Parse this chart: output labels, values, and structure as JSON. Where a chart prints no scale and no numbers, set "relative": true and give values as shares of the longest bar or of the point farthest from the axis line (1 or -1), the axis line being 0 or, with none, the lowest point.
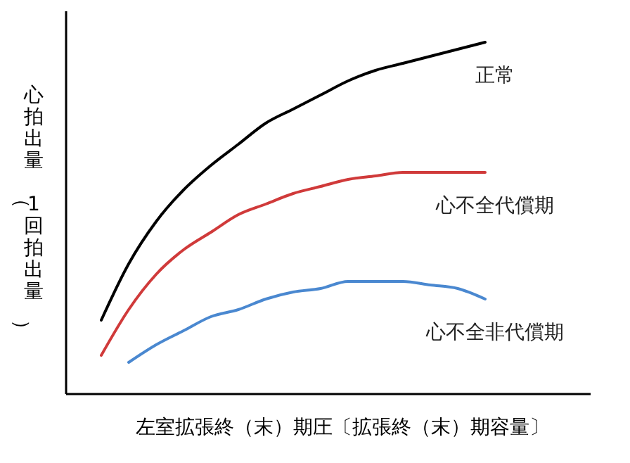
{
  "chart_data": {
    "type": "line",
    "relative": true,
    "xlabel": "左室拡張終（末）期圧〔拡張終（末）期容量〕",
    "ylabel": "心拍出量（1回拍出量）",
    "categories": [
      null,
      null,
      null,
      null,
      null,
      null,
      null,
      null,
      null,
      null,
      null,
      null,
      null,
      null,
      null
    ],
    "series": [
      {
        "name": "正常",
        "color": "#000000",
        "values": [
          0.21,
          0.37,
          0.49,
          0.58,
          0.65,
          0.71,
          0.77,
          0.81,
          0.85,
          0.89,
          0.92,
          0.94,
          0.96,
          0.98,
          1
        ]
      },
      {
        "name": "心不全代償期",
        "color": "#d03a3a",
        "values": [
          0.11,
          0.24,
          0.34,
          0.41,
          0.46,
          0.51,
          0.54,
          0.57,
          0.59,
          0.61,
          0.62,
          0.63,
          0.63,
          0.63,
          0.63
        ]
      },
      {
        "name": "心不全非代償期",
        "color": "#4a88d0",
        "values": [
          null,
          0.09,
          0.14,
          0.18,
          0.22,
          0.24,
          0.27,
          0.29,
          0.3,
          0.32,
          0.32,
          0.32,
          0.31,
          0.3,
          0.27
        ]
      }
    ]
  }
}
